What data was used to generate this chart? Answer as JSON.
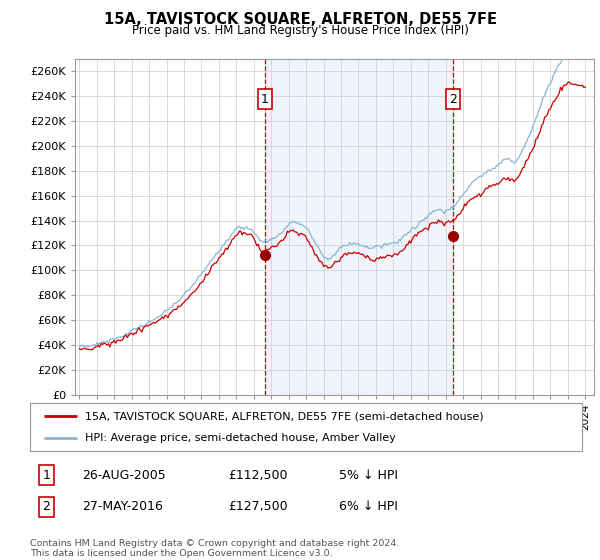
{
  "title": "15A, TAVISTOCK SQUARE, ALFRETON, DE55 7FE",
  "subtitle": "Price paid vs. HM Land Registry's House Price Index (HPI)",
  "legend_line1": "15A, TAVISTOCK SQUARE, ALFRETON, DE55 7FE (semi-detached house)",
  "legend_line2": "HPI: Average price, semi-detached house, Amber Valley",
  "footnote": "Contains HM Land Registry data © Crown copyright and database right 2024.\nThis data is licensed under the Open Government Licence v3.0.",
  "annotation1_label": "1",
  "annotation1_date": "26-AUG-2005",
  "annotation1_price": "£112,500",
  "annotation1_hpi": "5% ↓ HPI",
  "annotation2_label": "2",
  "annotation2_date": "27-MAY-2016",
  "annotation2_price": "£127,500",
  "annotation2_hpi": "6% ↓ HPI",
  "hpi_color": "#8ab4d8",
  "price_color": "#cc0000",
  "fill_color": "#ddeeff",
  "marker_color": "#990000",
  "annotation_box_color": "#cc0000",
  "grid_color": "#cccccc",
  "background_color": "#ffffff",
  "ylim": [
    0,
    270000
  ],
  "yticks": [
    0,
    20000,
    40000,
    60000,
    80000,
    100000,
    120000,
    140000,
    160000,
    180000,
    200000,
    220000,
    240000,
    260000
  ],
  "ytick_labels": [
    "£0",
    "£20K",
    "£40K",
    "£60K",
    "£80K",
    "£100K",
    "£120K",
    "£140K",
    "£160K",
    "£180K",
    "£200K",
    "£220K",
    "£240K",
    "£260K"
  ],
  "sale1_year": 2005.63,
  "sale1_value": 112500,
  "sale1_label": "1",
  "sale2_year": 2016.41,
  "sale2_value": 127500,
  "sale2_label": "2",
  "vline1_year": 2005.63,
  "vline2_year": 2016.41
}
